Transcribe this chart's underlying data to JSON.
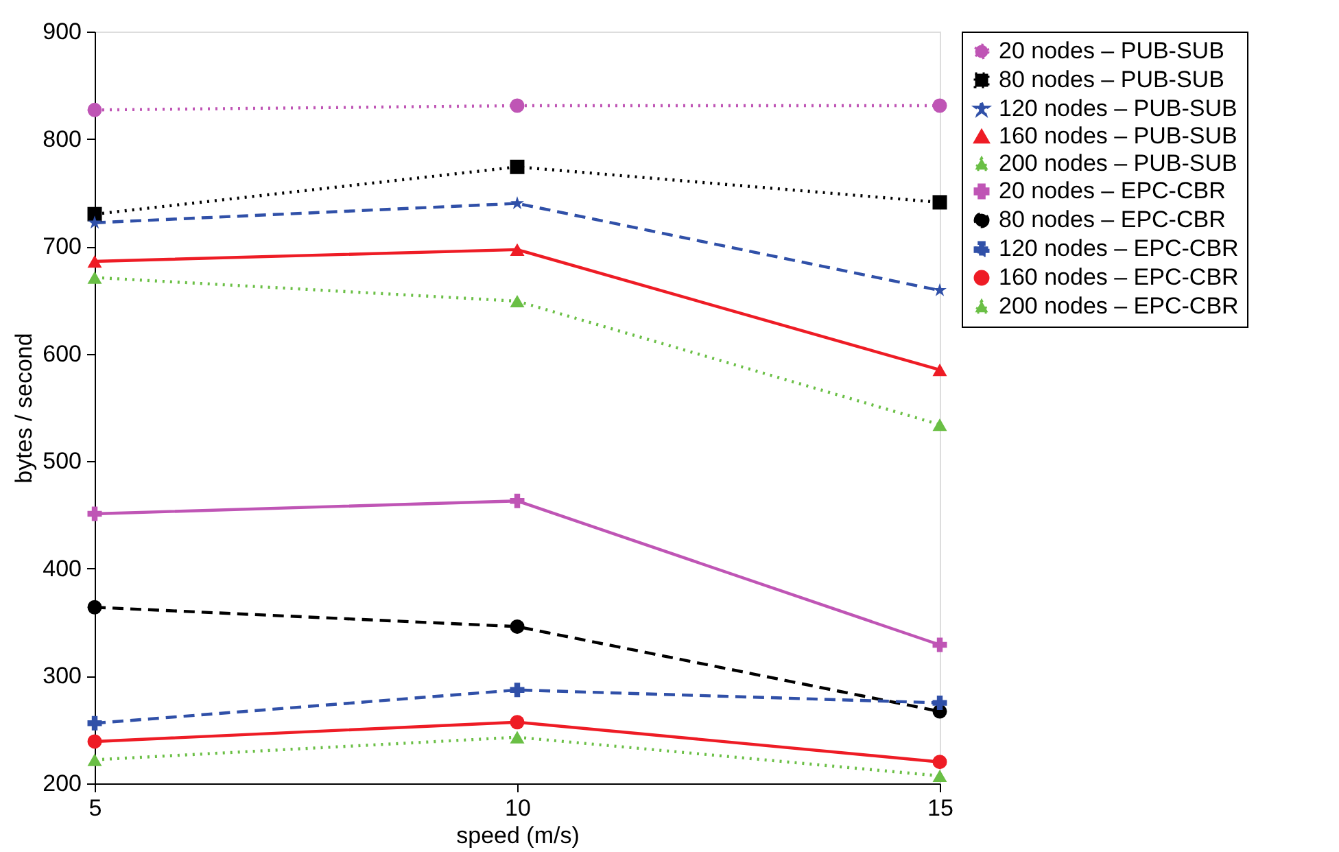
{
  "chart_data": {
    "type": "line",
    "xlabel": "speed (m/s)",
    "ylabel": "bytes / second",
    "x": [
      5,
      10,
      15
    ],
    "xlim": [
      5,
      15
    ],
    "xticks": [
      5,
      10,
      15
    ],
    "ylim": [
      200,
      900
    ],
    "yticks": [
      200,
      300,
      400,
      500,
      600,
      700,
      800,
      900
    ],
    "grid": false,
    "legend": "right",
    "series": [
      {
        "name": "20 nodes – PUB-SUB",
        "color": "#bf55b5",
        "values": [
          827,
          831,
          831
        ],
        "line_style": "dotted",
        "marker": "circle"
      },
      {
        "name": "80 nodes – PUB-SUB",
        "color": "#000000",
        "values": [
          730,
          774,
          741
        ],
        "line_style": "dotted",
        "marker": "square"
      },
      {
        "name": "120 nodes – PUB-SUB",
        "color": "#3050a8",
        "values": [
          722,
          740,
          659
        ],
        "line_style": "dashed",
        "marker": "star"
      },
      {
        "name": "160 nodes – PUB-SUB",
        "color": "#ee1c25",
        "values": [
          686,
          697,
          585
        ],
        "line_style": "solid",
        "marker": "triangle"
      },
      {
        "name": "200 nodes – PUB-SUB",
        "color": "#6abf45",
        "values": [
          671,
          649,
          534
        ],
        "line_style": "dotted",
        "marker": "triangle"
      },
      {
        "name": "20 nodes – EPC-CBR",
        "color": "#bf55b5",
        "values": [
          451,
          463,
          329
        ],
        "line_style": "solid",
        "marker": "cross"
      },
      {
        "name": "80 nodes – EPC-CBR",
        "color": "#000000",
        "values": [
          364,
          346,
          267
        ],
        "line_style": "dashed",
        "marker": "circle"
      },
      {
        "name": "120 nodes – EPC-CBR",
        "color": "#3050a8",
        "values": [
          256,
          287,
          275
        ],
        "line_style": "dashed",
        "marker": "cross"
      },
      {
        "name": "160 nodes – EPC-CBR",
        "color": "#ee1c25",
        "values": [
          239,
          257,
          220
        ],
        "line_style": "solid",
        "marker": "circle"
      },
      {
        "name": "200 nodes – EPC-CBR",
        "color": "#6abf45",
        "values": [
          222,
          243,
          207
        ],
        "line_style": "dotted",
        "marker": "triangle"
      }
    ]
  }
}
